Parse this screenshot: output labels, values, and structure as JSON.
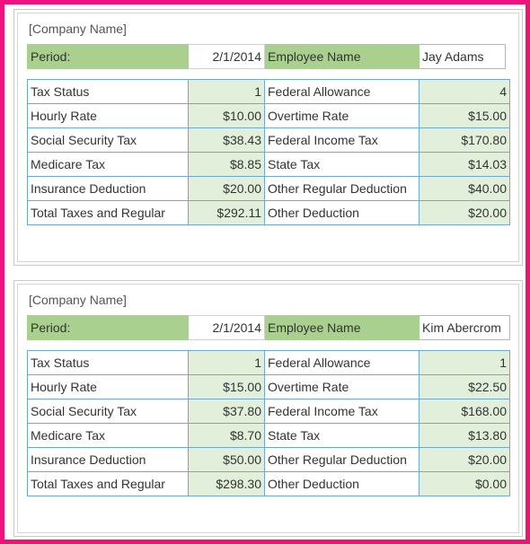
{
  "stubs": [
    {
      "company": "[Company Name]",
      "period_label": "Period:",
      "period_value": "2/1/2014",
      "employee_label": "Employee Name",
      "employee_value": "Jay Adams",
      "rows": [
        {
          "l1": "Tax Status",
          "v1": "1",
          "l2": "Federal Allowance",
          "v2": "4"
        },
        {
          "l1": "Hourly Rate",
          "v1": "$10.00",
          "l2": "Overtime Rate",
          "v2": "$15.00"
        },
        {
          "l1": "Social Security Tax",
          "v1": "$38.43",
          "l2": "Federal Income Tax",
          "v2": "$170.80"
        },
        {
          "l1": "Medicare Tax",
          "v1": "$8.85",
          "l2": "State Tax",
          "v2": "$14.03"
        },
        {
          "l1": "Insurance Deduction",
          "v1": "$20.00",
          "l2": "Other Regular Deduction",
          "v2": "$40.00"
        },
        {
          "l1": "Total Taxes and Regular",
          "v1": "$292.11",
          "l2": "Other Deduction",
          "v2": "$20.00"
        }
      ]
    },
    {
      "company": "[Company Name]",
      "period_label": "Period:",
      "period_value": "2/1/2014",
      "employee_label": "Employee Name",
      "employee_value": "Kim Abercrom",
      "rows": [
        {
          "l1": "Tax Status",
          "v1": "1",
          "l2": "Federal Allowance",
          "v2": "1"
        },
        {
          "l1": "Hourly Rate",
          "v1": "$15.00",
          "l2": "Overtime Rate",
          "v2": "$22.50"
        },
        {
          "l1": "Social Security Tax",
          "v1": "$37.80",
          "l2": "Federal Income Tax",
          "v2": "$168.00"
        },
        {
          "l1": "Medicare Tax",
          "v1": "$8.70",
          "l2": "State Tax",
          "v2": "$13.80"
        },
        {
          "l1": "Insurance Deduction",
          "v1": "$50.00",
          "l2": "Other Regular Deduction",
          "v2": "$20.00"
        },
        {
          "l1": "Total Taxes and Regular",
          "v1": "$298.30",
          "l2": "Other Deduction",
          "v2": "$0.00"
        }
      ]
    }
  ]
}
